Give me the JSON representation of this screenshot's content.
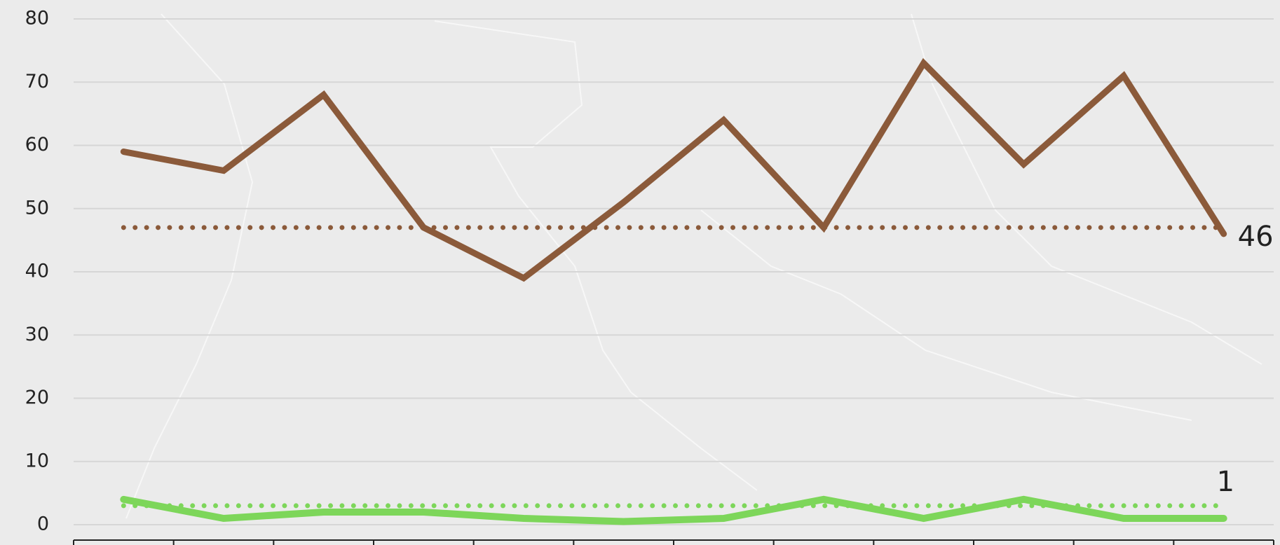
{
  "chart_data": {
    "type": "line",
    "categories": [
      null,
      null,
      null,
      null,
      null,
      null,
      null,
      null,
      null,
      null,
      null,
      null
    ],
    "series": [
      {
        "color": "#8b5a3a",
        "values": [
          59,
          56,
          68,
          47,
          39,
          51,
          64,
          47,
          73,
          57,
          71,
          46
        ],
        "value_labels": [
          null,
          null,
          null,
          null,
          null,
          null,
          null,
          null,
          null,
          null,
          null,
          "46"
        ]
      },
      {
        "color": "#7dd65a",
        "values": [
          4,
          1,
          2,
          2,
          1,
          0.5,
          1,
          4,
          1,
          4,
          1,
          1
        ],
        "value_labels": [
          null,
          null,
          null,
          null,
          null,
          null,
          null,
          null,
          null,
          null,
          null,
          "1"
        ]
      }
    ],
    "hlines": [
      {
        "value": 47,
        "color": "#8b5a3a"
      },
      {
        "value": 3,
        "color": "#7dd65a"
      }
    ],
    "ylim": [
      0,
      80
    ],
    "yticks": [
      0,
      10,
      20,
      30,
      40,
      50,
      60,
      70,
      80
    ],
    "grid": true
  }
}
